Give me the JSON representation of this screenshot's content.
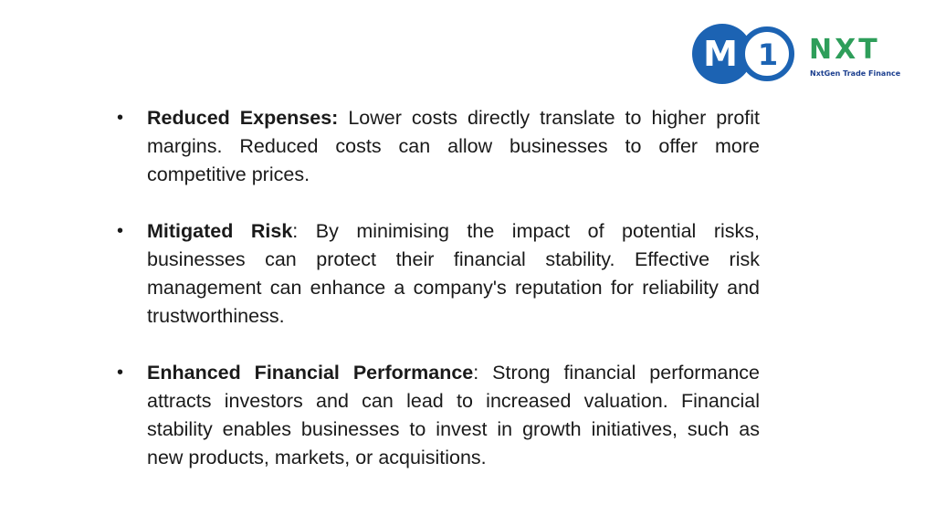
{
  "logo": {
    "mark_left": "M",
    "mark_right": "1",
    "wordmark": "NXT",
    "tagline": "NxtGen Trade Finance",
    "colors": {
      "blue": "#1c63b3",
      "green": "#2e9e5a",
      "navy": "#1c3f8f"
    }
  },
  "bullets": [
    {
      "term": "Reduced Expenses:",
      "text": " Lower costs directly translate to higher profit margins. Reduced costs can allow businesses to offer more competitive prices."
    },
    {
      "term": "Mitigated Risk",
      "text": ": By minimising the impact of potential risks, businesses can protect their financial stability. Effective risk management can enhance a company's reputation for reliability and trustworthiness."
    },
    {
      "term": "Enhanced Financial Performance",
      "text": ": Strong financial performance attracts investors and can lead to increased valuation. Financial stability enables businesses to invest in growth initiatives, such as new products, markets, or acquisitions."
    }
  ]
}
